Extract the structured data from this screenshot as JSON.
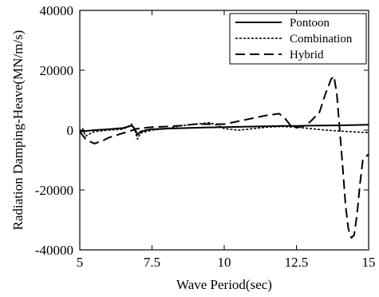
{
  "chart_data": {
    "type": "line",
    "title": "",
    "xlabel": "Wave Period(sec)",
    "ylabel": "Radiation Damping-Heave(MN/m/s)",
    "xlim": [
      5,
      15
    ],
    "ylim": [
      -40000,
      40000
    ],
    "xticks": [
      5,
      7.5,
      10,
      12.5,
      15
    ],
    "yticks": [
      -40000,
      -20000,
      0,
      20000,
      40000
    ],
    "xtick_labels": [
      "5",
      "7.5",
      "10",
      "12.5",
      "15"
    ],
    "ytick_labels": [
      "-40000",
      "-20000",
      "0",
      "20000",
      "40000"
    ],
    "grid": false,
    "legend_position": "top-right",
    "series": [
      {
        "name": "Pontoon",
        "style": "solid",
        "x": [
          5.0,
          5.2,
          5.5,
          6.0,
          6.5,
          6.8,
          6.9,
          7.0,
          7.1,
          7.3,
          7.5,
          8.0,
          9.0,
          10.0,
          11.0,
          12.0,
          12.5,
          13.0,
          14.0,
          15.0
        ],
        "y": [
          -500,
          -300,
          0,
          300,
          700,
          1500,
          500,
          -1500,
          -500,
          0,
          300,
          500,
          800,
          1000,
          1200,
          1400,
          1400,
          1500,
          1600,
          1800
        ]
      },
      {
        "name": "Combination",
        "style": "dashed",
        "x": [
          5.0,
          5.1,
          5.2,
          5.3,
          5.5,
          6.0,
          6.5,
          6.8,
          6.9,
          7.0,
          7.1,
          7.3,
          7.5,
          8.0,
          8.5,
          9.0,
          9.5,
          9.8,
          10.0,
          10.5,
          11.0,
          11.5,
          12.0,
          12.5,
          13.0,
          13.5,
          14.0,
          14.5,
          15.0
        ],
        "y": [
          -500,
          500,
          -2000,
          -1500,
          -500,
          0,
          300,
          2000,
          0,
          -3000,
          -1000,
          -500,
          0,
          500,
          1500,
          2000,
          2500,
          1500,
          500,
          0,
          500,
          1000,
          1200,
          1000,
          500,
          0,
          -300,
          -600,
          -800
        ]
      },
      {
        "name": "Hybrid",
        "style": "longdash",
        "x": [
          5.0,
          5.2,
          5.5,
          5.8,
          6.0,
          6.5,
          7.0,
          7.5,
          8.0,
          8.5,
          9.0,
          9.5,
          10.0,
          10.5,
          11.0,
          11.5,
          11.9,
          12.1,
          12.3,
          12.5,
          12.8,
          13.0,
          13.3,
          13.5,
          13.7,
          13.8,
          13.9,
          14.0,
          14.1,
          14.2,
          14.3,
          14.4,
          14.5,
          14.6,
          14.7,
          14.8,
          15.0
        ],
        "y": [
          -500,
          -3000,
          -4500,
          -3500,
          -2500,
          -1000,
          500,
          1000,
          1200,
          1500,
          2000,
          2000,
          2000,
          3000,
          4000,
          5000,
          5500,
          4000,
          1500,
          800,
          1500,
          3000,
          6000,
          12000,
          17000,
          18000,
          12000,
          0,
          -12000,
          -25000,
          -33000,
          -36000,
          -35000,
          -28000,
          -18000,
          -10000,
          -8000
        ]
      }
    ]
  }
}
